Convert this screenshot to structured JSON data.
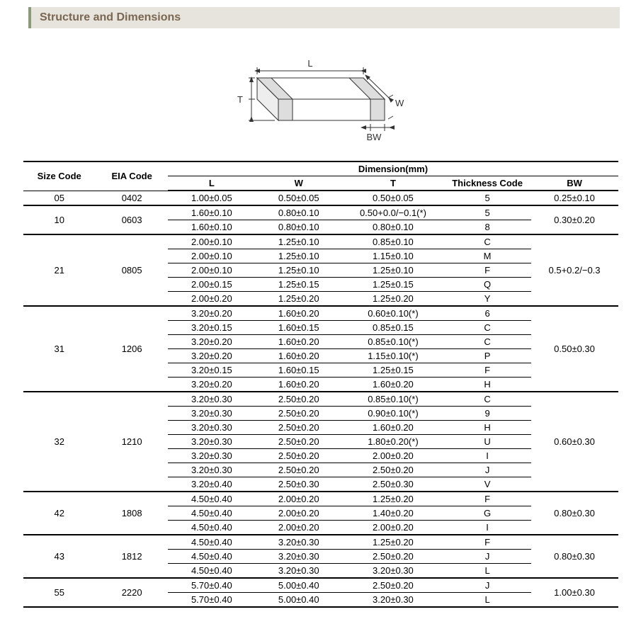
{
  "header": {
    "title": "Structure and Dimensions"
  },
  "diagram": {
    "labels": {
      "L": "L",
      "W": "W",
      "T": "T",
      "BW": "BW"
    },
    "stroke": "#333333",
    "fill_top": "#ffffff",
    "fill_side": "#eeeeee",
    "fill_end": "#dddddd",
    "text_color": "#333333"
  },
  "table": {
    "header_group": "Dimension(mm)",
    "columns": {
      "size": "Size Code",
      "eia": "EIA Code",
      "L": "L",
      "W": "W",
      "T": "T",
      "TC": "Thickness  Code",
      "BW": "BW"
    },
    "groups": [
      {
        "size": "05",
        "eia": "0402",
        "bw": "0.25±0.10",
        "rows": [
          {
            "L": "1.00±0.05",
            "W": "0.50±0.05",
            "T": "0.50±0.05",
            "TC": "5"
          }
        ]
      },
      {
        "size": "10",
        "eia": "0603",
        "bw": "0.30±0.20",
        "rows": [
          {
            "L": "1.60±0.10",
            "W": "0.80±0.10",
            "T": "0.50+0.0/−0.1(*)",
            "TC": "5"
          },
          {
            "L": "1.60±0.10",
            "W": "0.80±0.10",
            "T": "0.80±0.10",
            "TC": "8"
          }
        ]
      },
      {
        "size": "21",
        "eia": "0805",
        "bw": "0.5+0.2/−0.3",
        "rows": [
          {
            "L": "2.00±0.10",
            "W": "1.25±0.10",
            "T": "0.85±0.10",
            "TC": "C"
          },
          {
            "L": "2.00±0.10",
            "W": "1.25±0.10",
            "T": "1.15±0.10",
            "TC": "M"
          },
          {
            "L": "2.00±0.10",
            "W": "1.25±0.10",
            "T": "1.25±0.10",
            "TC": "F"
          },
          {
            "L": "2.00±0.15",
            "W": "1.25±0.15",
            "T": "1.25±0.15",
            "TC": "Q"
          },
          {
            "L": "2.00±0.20",
            "W": "1.25±0.20",
            "T": "1.25±0.20",
            "TC": "Y"
          }
        ]
      },
      {
        "size": "31",
        "eia": "1206",
        "bw": "0.50±0.30",
        "rows": [
          {
            "L": "3.20±0.20",
            "W": "1.60±0.20",
            "T": "0.60±0.10(*)",
            "TC": "6"
          },
          {
            "L": "3.20±0.15",
            "W": "1.60±0.15",
            "T": "0.85±0.15",
            "TC": "C"
          },
          {
            "L": "3.20±0.20",
            "W": "1.60±0.20",
            "T": "0.85±0.10(*)",
            "TC": "C"
          },
          {
            "L": "3.20±0.20",
            "W": "1.60±0.20",
            "T": "1.15±0.10(*)",
            "TC": "P"
          },
          {
            "L": "3.20±0.15",
            "W": "1.60±0.15",
            "T": "1.25±0.15",
            "TC": "F"
          },
          {
            "L": "3.20±0.20",
            "W": "1.60±0.20",
            "T": "1.60±0.20",
            "TC": "H"
          }
        ]
      },
      {
        "size": "32",
        "eia": "1210",
        "bw": "0.60±0.30",
        "rows": [
          {
            "L": "3.20±0.30",
            "W": "2.50±0.20",
            "T": "0.85±0.10(*)",
            "TC": "C"
          },
          {
            "L": "3.20±0.30",
            "W": "2.50±0.20",
            "T": "0.90±0.10(*)",
            "TC": "9"
          },
          {
            "L": "3.20±0.30",
            "W": "2.50±0.20",
            "T": "1.60±0.20",
            "TC": "H"
          },
          {
            "L": "3.20±0.30",
            "W": "2.50±0.20",
            "T": "1.80±0.20(*)",
            "TC": "U"
          },
          {
            "L": "3.20±0.30",
            "W": "2.50±0.20",
            "T": "2.00±0.20",
            "TC": "I"
          },
          {
            "L": "3.20±0.30",
            "W": "2.50±0.20",
            "T": "2.50±0.20",
            "TC": "J"
          },
          {
            "L": "3.20±0.40",
            "W": "2.50±0.30",
            "T": "2.50±0.30",
            "TC": "V"
          }
        ]
      },
      {
        "size": "42",
        "eia": "1808",
        "bw": "0.80±0.30",
        "rows": [
          {
            "L": "4.50±0.40",
            "W": "2.00±0.20",
            "T": "1.25±0.20",
            "TC": "F"
          },
          {
            "L": "4.50±0.40",
            "W": "2.00±0.20",
            "T": "1.40±0.20",
            "TC": "G"
          },
          {
            "L": "4.50±0.40",
            "W": "2.00±0.20",
            "T": "2.00±0.20",
            "TC": "I"
          }
        ]
      },
      {
        "size": "43",
        "eia": "1812",
        "bw": "0.80±0.30",
        "rows": [
          {
            "L": "4.50±0.40",
            "W": "3.20±0.30",
            "T": "1.25±0.20",
            "TC": "F"
          },
          {
            "L": "4.50±0.40",
            "W": "3.20±0.30",
            "T": "2.50±0.20",
            "TC": "J"
          },
          {
            "L": "4.50±0.40",
            "W": "3.20±0.30",
            "T": "3.20±0.30",
            "TC": "L"
          }
        ]
      },
      {
        "size": "55",
        "eia": "2220",
        "bw": "1.00±0.30",
        "rows": [
          {
            "L": "5.70±0.40",
            "W": "5.00±0.40",
            "T": "2.50±0.20",
            "TC": "J"
          },
          {
            "L": "5.70±0.40",
            "W": "5.00±0.40",
            "T": "3.20±0.30",
            "TC": "L"
          }
        ]
      }
    ]
  }
}
